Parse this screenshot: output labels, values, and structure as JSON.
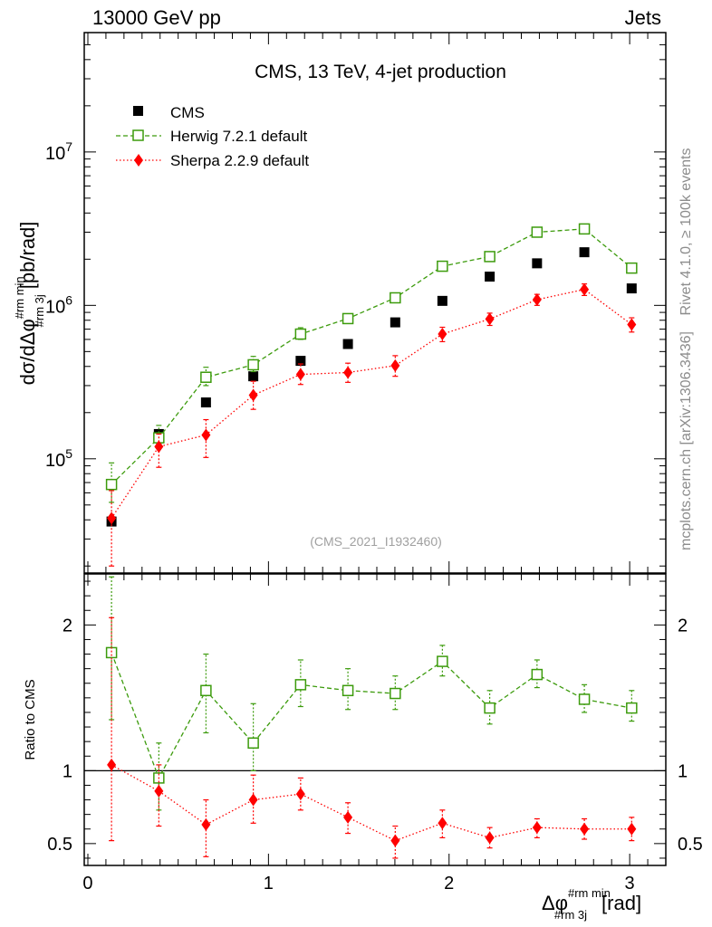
{
  "header": {
    "left": "13000 GeV pp",
    "right": "Jets"
  },
  "side_labels": {
    "rivet": "Rivet 4.1.0, ≥ 100k events",
    "mcplots": "mcplots.cern.ch [arXiv:1306.3436]"
  },
  "chart_data": [
    {
      "type": "scatter",
      "title": "CMS, 13 TeV, 4-jet production",
      "watermark": "(CMS_2021_I1932460)",
      "ylabel": "dσ/dΔφ#rm min#rm 3j [pb/rad]",
      "ylabel_parts": {
        "main": "dσ/dΔφ",
        "sup": "#rm min",
        "sub": "#rm 3j",
        "unit": "[pb/rad]"
      },
      "yscale": "log",
      "ylim": [
        18000,
        60000000
      ],
      "xlim": [
        -0.02,
        3.2
      ],
      "y_ticks": [
        {
          "value": 100000,
          "base": "10",
          "exp": "5"
        },
        {
          "value": 1000000,
          "base": "10",
          "exp": "6"
        },
        {
          "value": 10000000,
          "base": "10",
          "exp": "7"
        }
      ],
      "x": [
        0.131,
        0.393,
        0.654,
        0.916,
        1.178,
        1.44,
        1.702,
        1.963,
        2.225,
        2.487,
        2.749,
        3.011
      ],
      "series": [
        {
          "name": "CMS",
          "color": "#000000",
          "marker": "filled-square",
          "line": "none",
          "values": [
            39000,
            145000,
            233000,
            345000,
            435000,
            560000,
            775000,
            1070000,
            1540000,
            1880000,
            2220000,
            1290000
          ]
        },
        {
          "name": "Herwig 7.2.1 default",
          "color": "#3c9b0c",
          "marker": "open-square",
          "line": "dashed",
          "values": [
            68000,
            137000,
            340000,
            410000,
            650000,
            820000,
            1120000,
            1800000,
            2080000,
            3000000,
            3150000,
            1750000
          ],
          "err_lo": [
            52000,
            125000,
            300000,
            370000,
            600000,
            770000,
            1060000,
            1740000,
            2000000,
            2900000,
            3050000,
            1690000
          ],
          "err_hi": [
            94000,
            165000,
            395000,
            465000,
            715000,
            880000,
            1190000,
            1870000,
            2160000,
            3100000,
            3250000,
            1810000
          ]
        },
        {
          "name": "Sherpa 2.2.9 default",
          "color": "#ff0000",
          "marker": "filled-diamond",
          "line": "dotted",
          "values": [
            41000,
            120000,
            143000,
            260000,
            355000,
            365000,
            405000,
            650000,
            815000,
            1090000,
            1270000,
            750000
          ],
          "err_lo": [
            20000,
            88000,
            102000,
            210000,
            305000,
            315000,
            345000,
            580000,
            740000,
            1000000,
            1160000,
            670000
          ],
          "err_hi": [
            62000,
            145000,
            180000,
            320000,
            415000,
            420000,
            470000,
            720000,
            890000,
            1180000,
            1380000,
            830000
          ]
        }
      ],
      "legend_position": "top-left"
    },
    {
      "type": "scatter",
      "ylabel": "Ratio to CMS",
      "xlabel": "Δφ#rm min#rm 3j [rad]",
      "xlabel_parts": {
        "main": "Δφ",
        "sup": "#rm min",
        "sub": "#rm 3j",
        "unit": "[rad]"
      },
      "xlim": [
        -0.02,
        3.2
      ],
      "ylim": [
        0.35,
        2.35
      ],
      "y_ticks": [
        {
          "value": 0.5,
          "label": "0.5"
        },
        {
          "value": 1,
          "label": "1"
        },
        {
          "value": 2,
          "label": "2"
        }
      ],
      "x_ticks": [
        {
          "value": 0,
          "label": "0"
        },
        {
          "value": 1,
          "label": "1"
        },
        {
          "value": 2,
          "label": "2"
        },
        {
          "value": 3,
          "label": "3"
        }
      ],
      "reference_line": 1,
      "x": [
        0.131,
        0.393,
        0.654,
        0.916,
        1.178,
        1.44,
        1.702,
        1.963,
        2.225,
        2.487,
        2.749,
        3.011
      ],
      "series": [
        {
          "name": "Herwig 7.2.1 default",
          "color": "#3c9b0c",
          "marker": "open-square",
          "line": "dashed",
          "values": [
            1.81,
            0.95,
            1.55,
            1.19,
            1.59,
            1.55,
            1.53,
            1.75,
            1.43,
            1.66,
            1.49,
            1.43
          ],
          "err_lo": [
            1.35,
            0.73,
            1.26,
            1.0,
            1.44,
            1.42,
            1.42,
            1.65,
            1.32,
            1.57,
            1.4,
            1.34
          ],
          "err_hi": [
            2.33,
            1.19,
            1.8,
            1.46,
            1.76,
            1.7,
            1.65,
            1.86,
            1.55,
            1.76,
            1.59,
            1.55
          ]
        },
        {
          "name": "Sherpa 2.2.9 default",
          "color": "#ff0000",
          "marker": "filled-diamond",
          "line": "dotted",
          "values": [
            1.04,
            0.86,
            0.63,
            0.8,
            0.84,
            0.68,
            0.52,
            0.64,
            0.54,
            0.61,
            0.6,
            0.6
          ],
          "err_lo": [
            0.52,
            0.62,
            0.41,
            0.64,
            0.73,
            0.57,
            0.4,
            0.54,
            0.47,
            0.54,
            0.53,
            0.52
          ],
          "err_hi": [
            2.05,
            1.04,
            0.8,
            0.97,
            0.95,
            0.78,
            0.62,
            0.73,
            0.61,
            0.67,
            0.67,
            0.68
          ]
        }
      ]
    }
  ]
}
